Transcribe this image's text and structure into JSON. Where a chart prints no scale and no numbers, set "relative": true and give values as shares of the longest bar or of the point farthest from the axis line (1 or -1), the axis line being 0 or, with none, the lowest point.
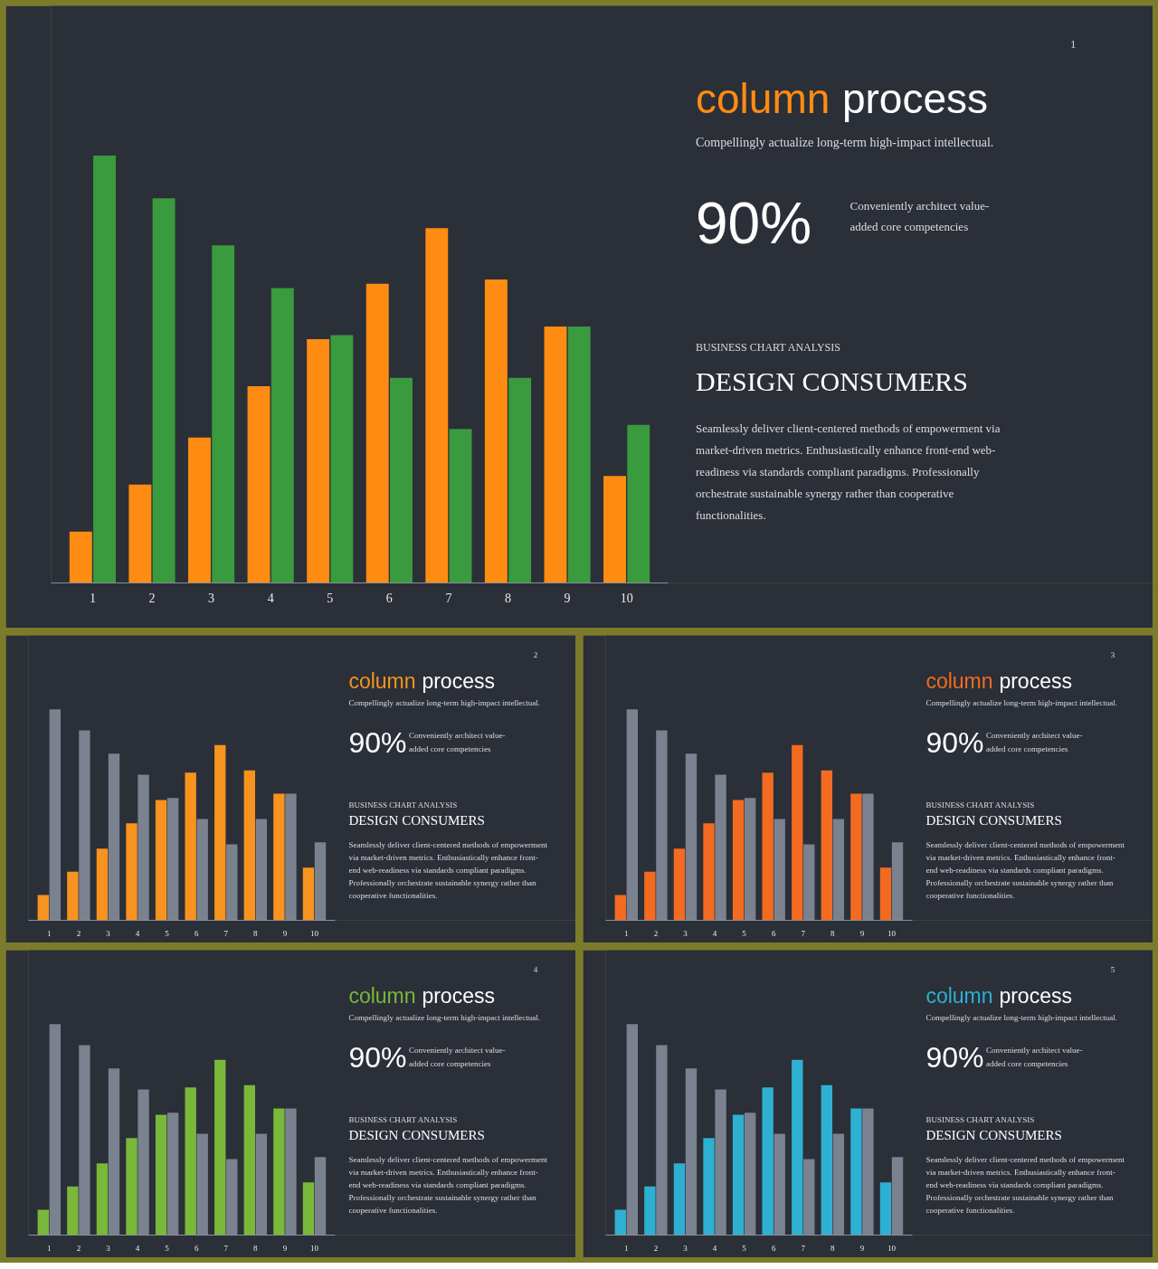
{
  "chart_data": [
    {
      "type": "bar",
      "relative": true,
      "grid": false,
      "categories": [
        "1",
        "2",
        "3",
        "4",
        "5",
        "6",
        "7",
        "8",
        "9",
        "10"
      ],
      "series": [
        {
          "color": "#ff8c12",
          "values": [
            0.12,
            0.23,
            0.34,
            0.46,
            0.57,
            0.7,
            0.83,
            0.71,
            0.6,
            0.25
          ]
        },
        {
          "color": "#3a9a3e",
          "values": [
            1,
            0.9,
            0.79,
            0.69,
            0.58,
            0.48,
            0.36,
            0.48,
            0.6,
            0.37
          ]
        }
      ],
      "annotations": [
        "1",
        "column process",
        "Compellingly actualize long-term high-impact intellectual.",
        "90%",
        "Conveniently architect value-added core competencies",
        "BUSINESS CHART ANALYSIS",
        "DESIGN CONSUMERS",
        "Seamlessly deliver client-centered methods of empowerment via market-driven metrics. Enthusiastically enhance front-end web-readiness via standards compliant paradigms. Professionally orchestrate sustainable synergy rather than cooperative functionalities."
      ]
    },
    {
      "type": "bar",
      "relative": true,
      "grid": false,
      "categories": [
        "1",
        "2",
        "3",
        "4",
        "5",
        "6",
        "7",
        "8",
        "9",
        "10"
      ],
      "series": [
        {
          "color": "#f7931e",
          "values": [
            0.12,
            0.23,
            0.34,
            0.46,
            0.57,
            0.7,
            0.83,
            0.71,
            0.6,
            0.25
          ]
        },
        {
          "color": "#7a8290",
          "values": [
            1,
            0.9,
            0.79,
            0.69,
            0.58,
            0.48,
            0.36,
            0.48,
            0.6,
            0.37
          ]
        }
      ],
      "annotations": [
        "2",
        "column process",
        "Compellingly actualize long-term high-impact intellectual.",
        "90%",
        "Conveniently architect value-added core competencies",
        "BUSINESS CHART ANALYSIS",
        "DESIGN CONSUMERS",
        "Seamlessly deliver client-centered methods of empowerment via market-driven metrics. Enthusiastically enhance front-end web-readiness via standards compliant paradigms. Professionally orchestrate sustainable synergy rather than cooperative functionalities."
      ]
    },
    {
      "type": "bar",
      "relative": true,
      "grid": false,
      "categories": [
        "1",
        "2",
        "3",
        "4",
        "5",
        "6",
        "7",
        "8",
        "9",
        "10"
      ],
      "series": [
        {
          "color": "#f26b21",
          "values": [
            0.12,
            0.23,
            0.34,
            0.46,
            0.57,
            0.7,
            0.83,
            0.71,
            0.6,
            0.25
          ]
        },
        {
          "color": "#7a8290",
          "values": [
            1,
            0.9,
            0.79,
            0.69,
            0.58,
            0.48,
            0.36,
            0.48,
            0.6,
            0.37
          ]
        }
      ],
      "annotations": [
        "3",
        "column process",
        "Compellingly actualize long-term high-impact intellectual.",
        "90%",
        "Conveniently architect value-added core competencies",
        "BUSINESS CHART ANALYSIS",
        "DESIGN CONSUMERS",
        "Seamlessly deliver client-centered methods of empowerment via market-driven metrics. Enthusiastically enhance front-end web-readiness via standards compliant paradigms. Professionally orchestrate sustainable synergy rather than cooperative functionalities."
      ]
    },
    {
      "type": "bar",
      "relative": true,
      "grid": false,
      "categories": [
        "1",
        "2",
        "3",
        "4",
        "5",
        "6",
        "7",
        "8",
        "9",
        "10"
      ],
      "series": [
        {
          "color": "#7ab83a",
          "values": [
            0.12,
            0.23,
            0.34,
            0.46,
            0.57,
            0.7,
            0.83,
            0.71,
            0.6,
            0.25
          ]
        },
        {
          "color": "#7a8290",
          "values": [
            1,
            0.9,
            0.79,
            0.69,
            0.58,
            0.48,
            0.36,
            0.48,
            0.6,
            0.37
          ]
        }
      ],
      "annotations": [
        "4",
        "column process",
        "Compellingly actualize long-term high-impact intellectual.",
        "90%",
        "Conveniently architect value-added core competencies",
        "BUSINESS CHART ANALYSIS",
        "DESIGN CONSUMERS",
        "Seamlessly deliver client-centered methods of empowerment via market-driven metrics. Enthusiastically enhance front-end web-readiness via standards compliant paradigms. Professionally orchestrate sustainable synergy rather than cooperative functionalities."
      ]
    },
    {
      "type": "bar",
      "relative": true,
      "grid": false,
      "categories": [
        "1",
        "2",
        "3",
        "4",
        "5",
        "6",
        "7",
        "8",
        "9",
        "10"
      ],
      "series": [
        {
          "color": "#2eb0d2",
          "values": [
            0.12,
            0.23,
            0.34,
            0.46,
            0.57,
            0.7,
            0.83,
            0.71,
            0.6,
            0.25
          ]
        },
        {
          "color": "#7a8290",
          "values": [
            1,
            0.9,
            0.79,
            0.69,
            0.58,
            0.48,
            0.36,
            0.48,
            0.6,
            0.37
          ]
        }
      ],
      "annotations": [
        "5",
        "column process",
        "Compellingly actualize long-term high-impact intellectual.",
        "90%",
        "Conveniently architect value-added core competencies",
        "BUSINESS CHART ANALYSIS",
        "DESIGN CONSUMERS",
        "Seamlessly deliver client-centered methods of empowerment via market-driven metrics. Enthusiastically enhance front-end web-readiness via standards compliant paradigms. Professionally orchestrate sustainable synergy rather than cooperative functionalities."
      ]
    }
  ]
}
